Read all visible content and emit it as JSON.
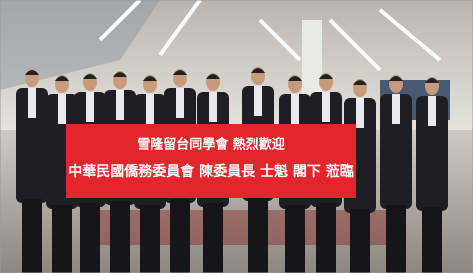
{
  "banner": {
    "line1": "雪隆留台同學會 熱烈歡迎",
    "line2": "中華民國僑務委員會 陳委員長 士魁 閣下 蒞臨"
  }
}
